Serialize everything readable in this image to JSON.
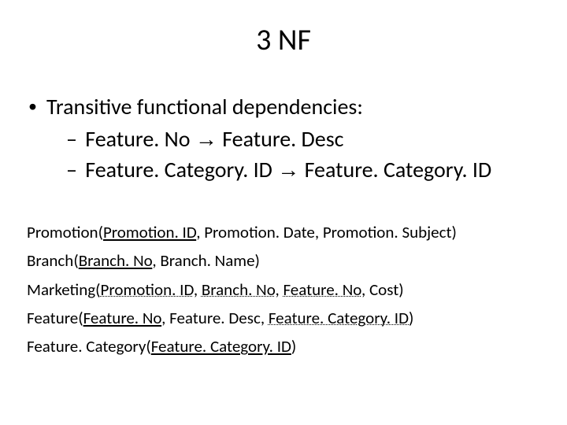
{
  "title": "3 NF",
  "heading": "Transitive functional dependencies:",
  "dep1_left": "Feature. No",
  "dep1_right": "Feature. Desc",
  "dep2_left": "Feature. Category. ID",
  "dep2_right": "Feature. Category. ID",
  "arrow": "→",
  "dash": "–",
  "bullet": "•",
  "schemas": {
    "promotion": {
      "name": "Promotion",
      "pk": "Promotion. ID",
      "rest": ", Promotion. Date, Promotion. Subject)"
    },
    "branch": {
      "name": "Branch",
      "pk": "Branch. No",
      "rest": ", Branch. Name)"
    },
    "marketing": {
      "name": "Marketing",
      "fk1": "Promotion. ID",
      "fk2": "Branch. No",
      "fk3": "Feature. No",
      "rest": ", Cost)"
    },
    "feature": {
      "name": "Feature",
      "pk": "Feature. No",
      "mid": ", Feature. Desc, ",
      "fk": "Feature. Category. ID",
      "close": ")"
    },
    "featurecat": {
      "name": "Feature. Category",
      "pk": "Feature. Category. ID",
      "close": ")"
    }
  },
  "font": {
    "family": "Calibri",
    "title_size": 38,
    "body_size": 28,
    "schema_size": 21,
    "color": "#000000"
  },
  "background": "#ffffff"
}
